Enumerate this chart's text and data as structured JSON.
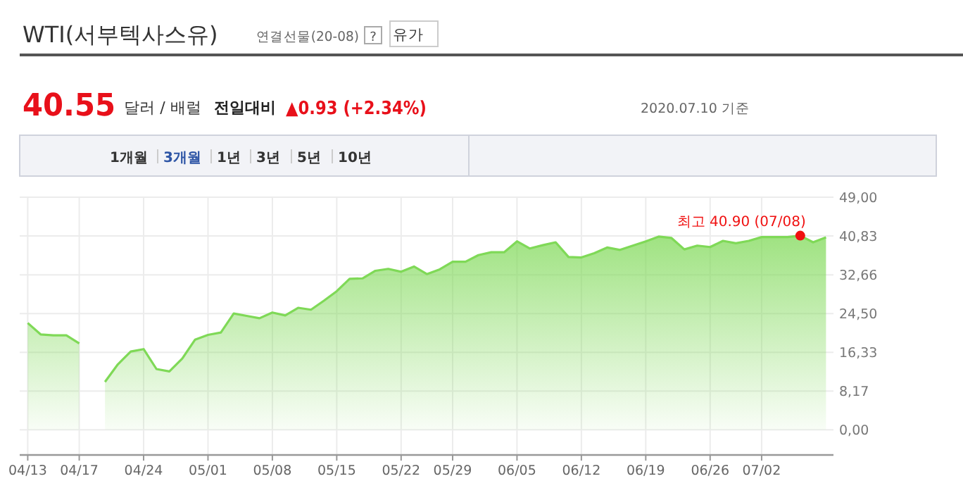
{
  "chart_data": {
    "type": "area",
    "title": "WTI(서부텍사스유)",
    "subtitle": "연결선물(20-08)",
    "categories": [
      "04/13",
      null,
      null,
      null,
      "04/17",
      null,
      null,
      null,
      null,
      "04/24",
      null,
      null,
      null,
      null,
      "05/01",
      null,
      null,
      null,
      null,
      "05/08",
      null,
      null,
      null,
      null,
      "05/15",
      null,
      null,
      null,
      null,
      "05/22",
      null,
      null,
      null,
      "05/29",
      null,
      null,
      null,
      null,
      "06/05",
      null,
      null,
      null,
      null,
      "06/12",
      null,
      null,
      null,
      null,
      "06/19",
      null,
      null,
      null,
      null,
      "06/26",
      null,
      null,
      null,
      "07/02",
      null,
      null,
      null,
      null,
      null
    ],
    "series": [
      {
        "color": "#7fd957",
        "values": [
          22.5,
          20.1,
          19.9,
          19.9,
          18.2,
          null,
          10.1,
          13.8,
          16.5,
          17.0,
          12.8,
          12.3,
          15.0,
          19.0,
          20.0,
          20.5,
          24.5,
          24.0,
          23.5,
          24.7,
          24.1,
          25.7,
          25.3,
          27.2,
          29.2,
          31.8,
          31.9,
          33.5,
          33.9,
          33.3,
          34.4,
          32.8,
          33.8,
          35.4,
          35.4,
          36.8,
          37.4,
          37.4,
          39.7,
          38.2,
          38.9,
          39.5,
          36.4,
          36.3,
          37.2,
          38.4,
          37.9,
          38.8,
          39.7,
          40.7,
          40.4,
          38.0,
          38.8,
          38.5,
          39.8,
          39.3,
          39.8,
          40.6,
          40.6,
          40.6,
          40.9,
          39.5,
          40.55
        ]
      }
    ],
    "ylim": [
      -5.3,
      49
    ],
    "yticks": [
      {
        "value": 0,
        "label": "0,00"
      },
      {
        "value": 8.17,
        "label": "8,17"
      },
      {
        "value": 16.33,
        "label": "16,33"
      },
      {
        "value": 24.5,
        "label": "24,50"
      },
      {
        "value": 32.66,
        "label": "32,66"
      },
      {
        "value": 40.83,
        "label": "40,83"
      },
      {
        "value": 49,
        "label": "49,00"
      }
    ],
    "grid": true,
    "annotations": [
      "?",
      "유가",
      "40.55",
      "달러 / 배럴",
      "전일대비",
      "▲0.93 (+2.34%)",
      "2020.07.10 기준",
      "1개월",
      "3개월",
      "1년",
      "3년",
      "5년",
      "10년",
      {
        "text": "최고 40.90 (07/08)",
        "y": 40.9
      }
    ]
  }
}
